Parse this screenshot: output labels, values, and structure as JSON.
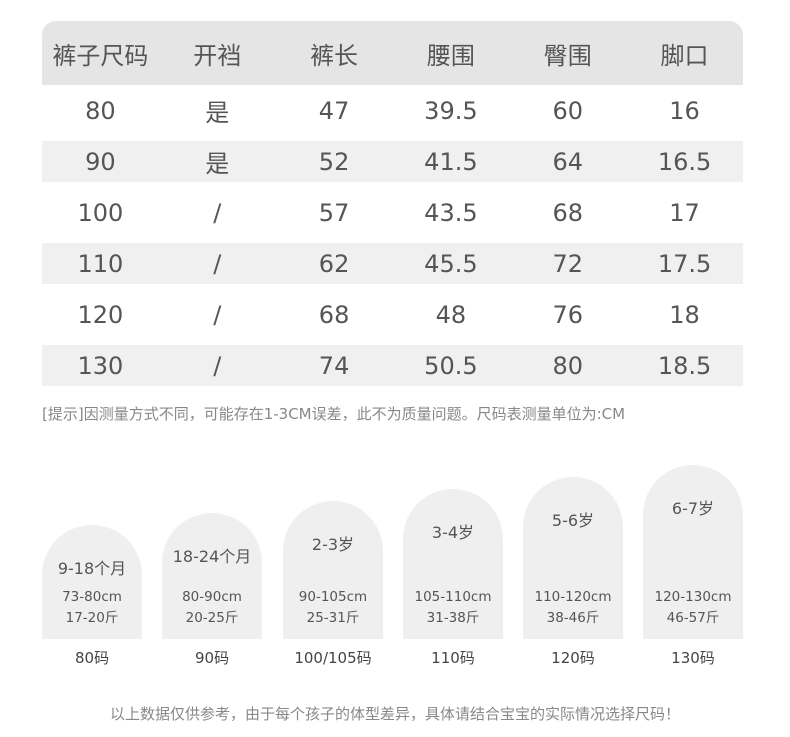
{
  "table": {
    "headers": [
      "裤子尺码",
      "开裆",
      "裤长",
      "腰围",
      "臀围",
      "脚口"
    ],
    "rows": [
      [
        "80",
        "是",
        "47",
        "39.5",
        "60",
        "16"
      ],
      [
        "90",
        "是",
        "52",
        "41.5",
        "64",
        "16.5"
      ],
      [
        "100",
        "/",
        "57",
        "43.5",
        "68",
        "17"
      ],
      [
        "110",
        "/",
        "62",
        "45.5",
        "72",
        "17.5"
      ],
      [
        "120",
        "/",
        "68",
        "48",
        "76",
        "18"
      ],
      [
        "130",
        "/",
        "74",
        "50.5",
        "80",
        "18.5"
      ]
    ]
  },
  "note": "[提示]因测量方式不同，可能存在1-3CM误差，此不为质量问题。尺码表测量单位为:CM",
  "cards": [
    {
      "age": "9-18个月",
      "height": "73-80cm",
      "weight": "17-20斤",
      "size": "80码"
    },
    {
      "age": "18-24个月",
      "height": "80-90cm",
      "weight": "20-25斤",
      "size": "90码"
    },
    {
      "age": "2-3岁",
      "height": "90-105cm",
      "weight": "25-31斤",
      "size": "100/105码"
    },
    {
      "age": "3-4岁",
      "height": "105-110cm",
      "weight": "31-38斤",
      "size": "110码"
    },
    {
      "age": "5-6岁",
      "height": "110-120cm",
      "weight": "38-46斤",
      "size": "120码"
    },
    {
      "age": "6-7岁",
      "height": "120-130cm",
      "weight": "46-57斤",
      "size": "130码"
    }
  ],
  "footer": "以上数据仅供参考，由于每个孩子的体型差异，具体请结合宝宝的实际情况选择尺码！"
}
